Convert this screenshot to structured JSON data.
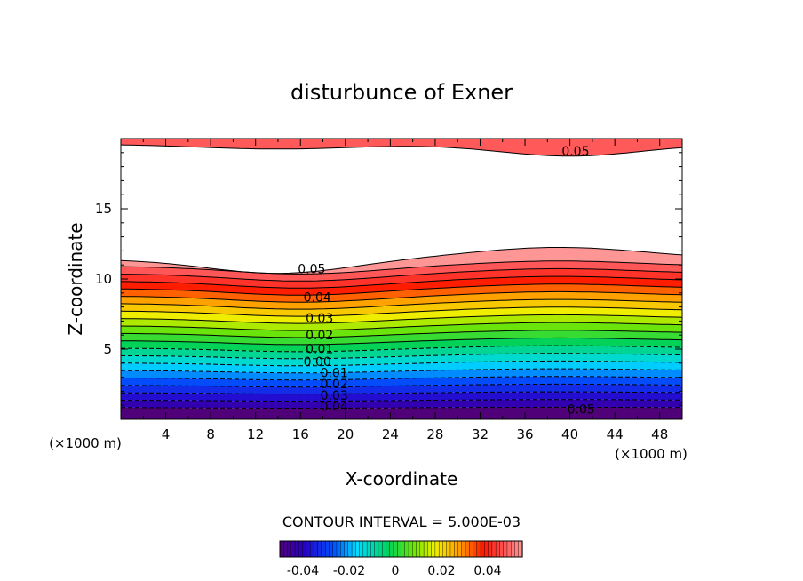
{
  "chart_data": {
    "type": "contour",
    "title": "disturbunce of Exner",
    "xlabel": "X-coordinate",
    "ylabel": "Z-coordinate",
    "x_unit_label": "(×1000 m)",
    "xlim": [
      0,
      50
    ],
    "ylim": [
      0,
      20
    ],
    "x_ticks": [
      4,
      8,
      12,
      16,
      20,
      24,
      28,
      32,
      36,
      40,
      44,
      48
    ],
    "y_ticks": [
      5,
      10,
      15
    ],
    "contour_interval_label": "CONTOUR INTERVAL = 5.000E-03",
    "contour_interval": 0.005,
    "levels": [
      -0.05,
      -0.045,
      -0.04,
      -0.035,
      -0.03,
      -0.025,
      -0.02,
      -0.015,
      -0.01,
      -0.005,
      0.0,
      0.005,
      0.01,
      0.015,
      0.02,
      0.025,
      0.03,
      0.035,
      0.04,
      0.045,
      0.05,
      0.055
    ],
    "contour_labels": [
      {
        "text": "0.05",
        "x": 40.5,
        "z": 18.8
      },
      {
        "text": "0.05",
        "x": 17.0,
        "z": 10.4
      },
      {
        "text": "0.04",
        "x": 17.5,
        "z": 8.4
      },
      {
        "text": "0.03",
        "x": 17.7,
        "z": 6.9
      },
      {
        "text": "0.02",
        "x": 17.7,
        "z": 5.7
      },
      {
        "text": "0.01",
        "x": 17.7,
        "z": 4.7
      },
      {
        "text": "0.00",
        "x": 17.5,
        "z": 3.8
      },
      {
        "text": "0.01",
        "x": 19.0,
        "z": 3.0
      },
      {
        "text": "0.02",
        "x": 19.0,
        "z": 2.2
      },
      {
        "text": "0.03",
        "x": 19.0,
        "z": 1.4
      },
      {
        "text": "0.04",
        "x": 19.0,
        "z": 0.6
      },
      {
        "text": "0.05",
        "x": 41.0,
        "z": 0.4
      }
    ],
    "colorbar": {
      "ticks": [
        "-0.04",
        "-0.02",
        "0",
        "0.02",
        "0.04"
      ],
      "range": [
        -0.05,
        0.055
      ]
    },
    "grid": false
  }
}
